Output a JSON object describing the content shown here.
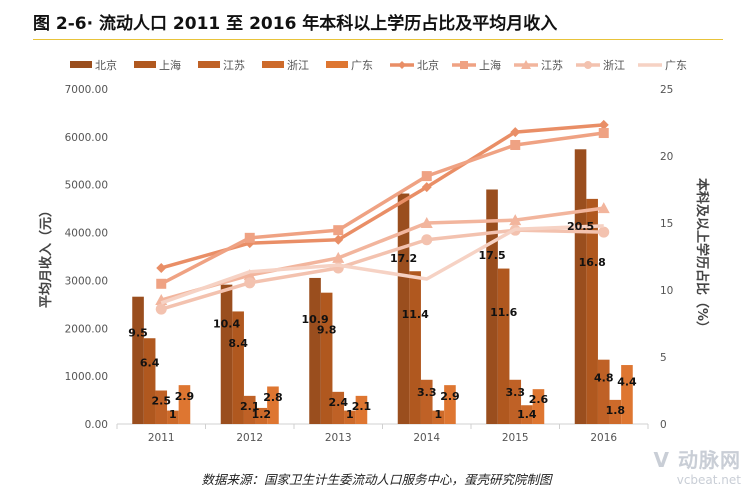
{
  "title": "图 2-6· 流动人口 2011 至 2016 年本科以上学历占比及平均月收入",
  "source": "数据来源：国家卫生计生委流动人口服务中心，蛋壳研究院制图",
  "watermark": {
    "brand": "动脉网",
    "url": "vcbeat.net"
  },
  "chart_data": {
    "type": "bar",
    "title": "流动人口 2011 至 2016 年本科以上学历占比及平均月收入",
    "categories": [
      "2011",
      "2012",
      "2013",
      "2014",
      "2015",
      "2016"
    ],
    "ylabel": "平均月收入（元）",
    "y2label": "本科及以上学历占比（%）",
    "ylim": [
      0,
      7000
    ],
    "y2lim": [
      0,
      25
    ],
    "yticks": [
      "0.00",
      "1000.00",
      "2000.00",
      "3000.00",
      "4000.00",
      "5000.00",
      "6000.00",
      "7000.00"
    ],
    "y2ticks": [
      "0",
      "5",
      "10",
      "15",
      "20",
      "25"
    ],
    "legend_position": "top",
    "grid": false,
    "bar_series": [
      {
        "name": "北京",
        "color": "#9A4E1E",
        "values": [
          9.5,
          10.4,
          10.9,
          17.2,
          17.5,
          20.5
        ]
      },
      {
        "name": "上海",
        "color": "#B0581F",
        "values": [
          6.4,
          8.4,
          9.8,
          11.4,
          11.6,
          16.8
        ]
      },
      {
        "name": "江苏",
        "color": "#BF6126",
        "values": [
          2.5,
          2.1,
          2.4,
          3.3,
          3.3,
          4.8
        ]
      },
      {
        "name": "浙江",
        "color": "#CD6A2A",
        "values": [
          1,
          1.2,
          1,
          1,
          1.4,
          1.8
        ]
      },
      {
        "name": "广东",
        "color": "#DE7631",
        "values": [
          2.9,
          2.8,
          2.1,
          2.9,
          2.6,
          4.4
        ]
      }
    ],
    "line_series": [
      {
        "name": "北京",
        "color": "#E98E66",
        "marker": "diamond",
        "values": [
          3260,
          3780,
          3850,
          4950,
          6100,
          6250
        ]
      },
      {
        "name": "上海",
        "color": "#EFA283",
        "marker": "square",
        "values": [
          2930,
          3890,
          4050,
          5180,
          5830,
          6080
        ]
      },
      {
        "name": "江苏",
        "color": "#F2B59D",
        "marker": "triangle",
        "values": [
          2590,
          3110,
          3470,
          4200,
          4260,
          4510
        ]
      },
      {
        "name": "浙江",
        "color": "#F3C2AF",
        "marker": "circle",
        "values": [
          2400,
          2950,
          3260,
          3850,
          4050,
          4010
        ]
      },
      {
        "name": "广东",
        "color": "#F6D2C4",
        "marker": "none",
        "values": [
          2530,
          3180,
          3320,
          3030,
          4070,
          4140
        ]
      }
    ]
  }
}
